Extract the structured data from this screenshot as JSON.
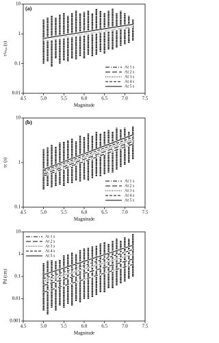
{
  "chart_data": [
    {
      "type": "scatter",
      "panel_label": "(a)",
      "ylabel": "τᵖₘₐₓ (s)",
      "xlabel": "Magnitude",
      "log_y": true,
      "legend": "lower right",
      "xlim": [
        4.5,
        7.5
      ],
      "xticks": [
        4.5,
        {
          "value": 5,
          "label": "5.0"
        },
        5.5,
        {
          "value": 6,
          "label": "6.0"
        },
        6.5,
        {
          "value": 7,
          "label": "7.0"
        },
        7.5
      ],
      "ylim": [
        0.01,
        10
      ],
      "yticks": [
        0.01,
        0.1,
        1,
        10
      ],
      "color": "#000000",
      "x": [
        5.0,
        5.1,
        5.2,
        5.3,
        5.4,
        5.5,
        5.6,
        5.7,
        5.8,
        5.9,
        6.0,
        6.1,
        6.2,
        6.3,
        6.4,
        6.5,
        6.6,
        6.7,
        6.8,
        6.9,
        7.0,
        7.1,
        7.2
      ],
      "columns": {
        "low": [
          0.1,
          0.12,
          0.08,
          0.15,
          0.1,
          0.13,
          0.12,
          0.15,
          0.14,
          0.18,
          0.15,
          0.2,
          0.18,
          0.2,
          0.25,
          0.22,
          0.3,
          0.3,
          0.35,
          0.4,
          0.45,
          0.5,
          0.6
        ],
        "high": [
          3,
          3.5,
          4,
          3.5,
          4.5,
          5,
          4,
          5,
          6,
          5,
          5.5,
          6,
          5,
          7,
          6,
          5,
          6,
          7,
          5,
          6,
          5,
          4,
          3
        ]
      },
      "lines": [
        {
          "name": "At 1 s",
          "dash": "6,2,1,2",
          "x": [
            5.0,
            7.2
          ],
          "values": [
            0.6,
            1.7
          ]
        },
        {
          "name": "At 2 s",
          "dash": "7,3",
          "x": [
            5.0,
            7.2
          ],
          "values": [
            0.62,
            1.8
          ]
        },
        {
          "name": "At 3 s",
          "dash": "1,1.5",
          "x": [
            5.0,
            7.2
          ],
          "values": [
            0.65,
            1.9
          ]
        },
        {
          "name": "At 4 s",
          "dash": "4,2",
          "x": [
            5.0,
            7.2
          ],
          "values": [
            0.68,
            2.0
          ]
        },
        {
          "name": "At 5 s",
          "dash": "none",
          "x": [
            5.0,
            7.2
          ],
          "values": [
            0.7,
            2.1
          ]
        }
      ]
    },
    {
      "type": "scatter",
      "panel_label": "(b)",
      "ylabel": "τc (s)",
      "xlabel": "Magnitude",
      "log_y": true,
      "legend": "lower right",
      "xlim": [
        4.5,
        7.5
      ],
      "xticks": [
        4.5,
        {
          "value": 5,
          "label": "5.0"
        },
        5.5,
        {
          "value": 6,
          "label": "6.0"
        },
        6.5,
        {
          "value": 7,
          "label": "7.0"
        },
        7.5
      ],
      "ylim": [
        0.1,
        10
      ],
      "yticks": [
        0.1,
        1,
        10
      ],
      "color": "#000000",
      "x": [
        5.0,
        5.1,
        5.2,
        5.3,
        5.4,
        5.5,
        5.6,
        5.7,
        5.8,
        5.9,
        6.0,
        6.1,
        6.2,
        6.3,
        6.4,
        6.5,
        6.6,
        6.7,
        6.8,
        6.9,
        7.0,
        7.1,
        7.2
      ],
      "columns": {
        "low": [
          0.25,
          0.3,
          0.28,
          0.3,
          0.32,
          0.3,
          0.35,
          0.35,
          0.4,
          0.38,
          0.42,
          0.4,
          0.45,
          0.5,
          0.5,
          0.55,
          0.6,
          0.6,
          0.7,
          0.8,
          0.9,
          1.0,
          1.2
        ],
        "high": [
          2,
          2.2,
          2.5,
          2.3,
          2.8,
          3,
          3.2,
          3.5,
          3,
          4,
          3.8,
          4.5,
          4,
          5,
          4.5,
          5,
          5.5,
          5,
          6,
          5.5,
          6,
          5,
          6.5
        ]
      },
      "lines": [
        {
          "name": "At 1 s",
          "dash": "6,2,1,2",
          "x": [
            5.0,
            7.2
          ],
          "values": [
            0.5,
            2.6
          ]
        },
        {
          "name": "At 2 s",
          "dash": "7,3",
          "x": [
            5.0,
            7.2
          ],
          "values": [
            0.55,
            3.0
          ]
        },
        {
          "name": "At 3 s",
          "dash": "1,1.5",
          "x": [
            5.0,
            7.2
          ],
          "values": [
            0.6,
            3.3
          ]
        },
        {
          "name": "At 4 s",
          "dash": "4,2",
          "x": [
            5.0,
            7.2
          ],
          "values": [
            0.65,
            3.7
          ]
        },
        {
          "name": "At 5 s",
          "dash": "none",
          "x": [
            5.0,
            7.2
          ],
          "values": [
            0.7,
            4.2
          ]
        }
      ]
    },
    {
      "type": "scatter",
      "panel_label": "(c)",
      "ylabel": "Pd (cm)",
      "xlabel": "Magnitude",
      "log_y": true,
      "legend": "upper left",
      "xlim": [
        4.5,
        7.5
      ],
      "xticks": [
        4.5,
        {
          "value": 5,
          "label": "5.0"
        },
        5.5,
        {
          "value": 6,
          "label": "6.0"
        },
        6.5,
        {
          "value": 7,
          "label": "7.0"
        },
        7.5
      ],
      "ylim": [
        0.001,
        10
      ],
      "yticks": [
        0.001,
        0.01,
        0.1,
        1,
        10
      ],
      "color": "#000000",
      "x": [
        5.0,
        5.1,
        5.2,
        5.3,
        5.4,
        5.5,
        5.6,
        5.7,
        5.8,
        5.9,
        6.0,
        6.1,
        6.2,
        6.3,
        6.4,
        6.5,
        6.6,
        6.7,
        6.8,
        6.9,
        7.0,
        7.1,
        7.2
      ],
      "columns": {
        "low": [
          0.003,
          0.002,
          0.004,
          0.003,
          0.005,
          0.004,
          0.006,
          0.005,
          0.008,
          0.007,
          0.01,
          0.01,
          0.012,
          0.015,
          0.02,
          0.02,
          0.03,
          0.03,
          0.04,
          0.05,
          0.06,
          0.08,
          0.1
        ],
        "high": [
          0.4,
          0.5,
          0.6,
          0.5,
          0.8,
          0.9,
          1,
          1.2,
          1,
          1.5,
          1.8,
          2,
          2.2,
          2.5,
          3,
          3.5,
          3,
          4,
          5,
          4,
          6,
          5,
          8
        ]
      },
      "lines": [
        {
          "name": "At 1 s",
          "dash": "6,2,1,2",
          "x": [
            5.0,
            7.2
          ],
          "values": [
            0.02,
            0.35
          ]
        },
        {
          "name": "At 2 s",
          "dash": "7,3",
          "x": [
            5.0,
            7.2
          ],
          "values": [
            0.04,
            0.6
          ]
        },
        {
          "name": "At 3 s",
          "dash": "1,1.5",
          "x": [
            5.0,
            7.2
          ],
          "values": [
            0.06,
            1.0
          ]
        },
        {
          "name": "At 4 s",
          "dash": "4,2",
          "x": [
            5.0,
            7.2
          ],
          "values": [
            0.08,
            1.6
          ]
        },
        {
          "name": "At 5 s",
          "dash": "none",
          "x": [
            5.0,
            7.2
          ],
          "values": [
            0.12,
            2.5
          ]
        }
      ]
    }
  ]
}
